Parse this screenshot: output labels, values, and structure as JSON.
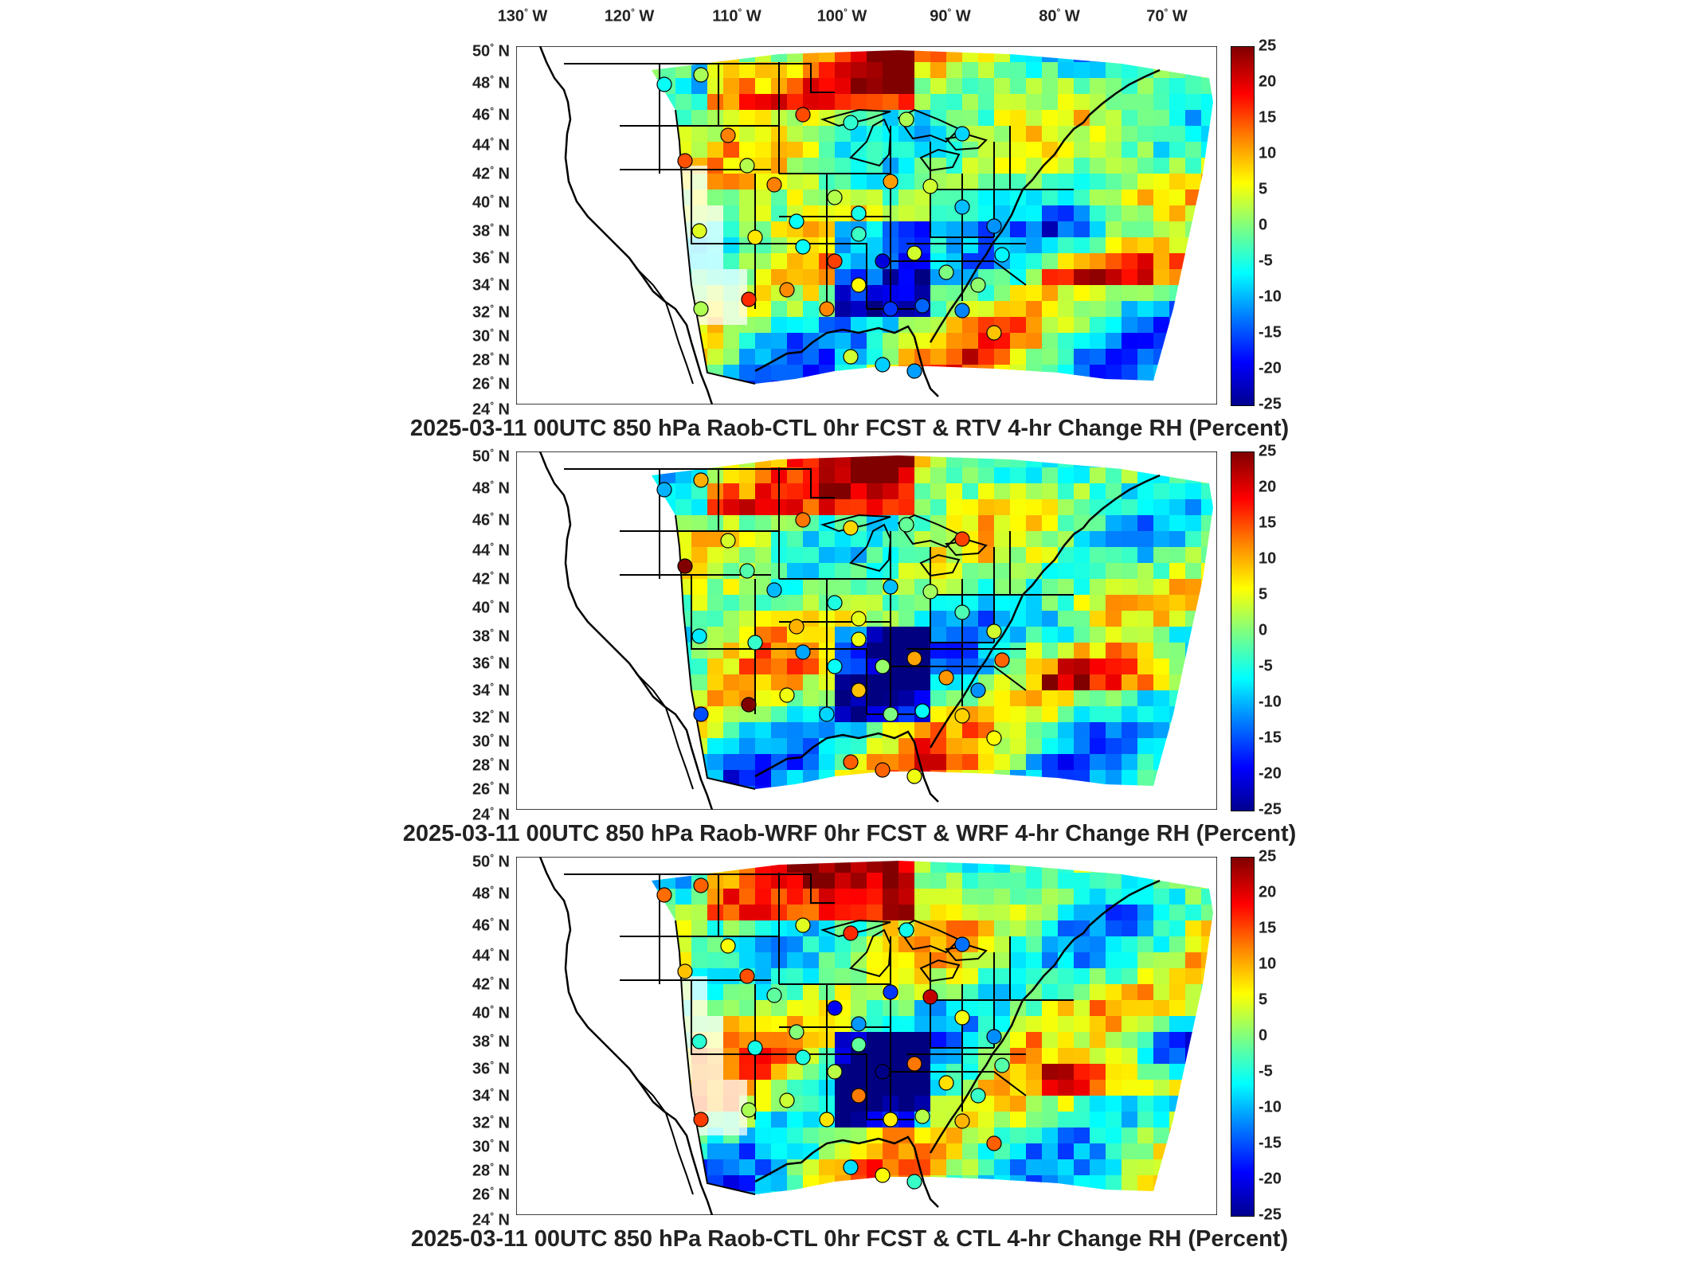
{
  "longitude_labels": [
    "130",
    "120",
    "110",
    "100",
    "90",
    "80",
    "70"
  ],
  "longitude_hemisphere": "W",
  "latitude_labels": [
    "50",
    "48",
    "46",
    "44",
    "42",
    "40",
    "38",
    "36",
    "34",
    "32",
    "30",
    "28",
    "26",
    "24"
  ],
  "latitude_hemisphere": "N",
  "degree_symbol": "°",
  "colorbar": {
    "ticks": [
      "25",
      "20",
      "15",
      "10",
      "5",
      "0",
      "-5",
      "-10",
      "-15",
      "-20",
      "-25"
    ],
    "min": -25,
    "max": 25,
    "colormap": "jet"
  },
  "panels": [
    {
      "title": "2025-03-11 00UTC 850 hPa Raob-CTL 0hr FCST & RTV 4-hr Change RH (Percent)",
      "key": "rtv"
    },
    {
      "title": "2025-03-11 00UTC 850 hPa Raob-WRF 0hr FCST & WRF 4-hr Change RH (Percent)",
      "key": "wrf"
    },
    {
      "title": "2025-03-11 00UTC 850 hPa Raob-CTL 0hr FCST & CTL 4-hr Change RH (Percent)",
      "key": "ctl"
    }
  ],
  "colors": {
    "land": "#ffffff",
    "outline": "#000000"
  }
}
